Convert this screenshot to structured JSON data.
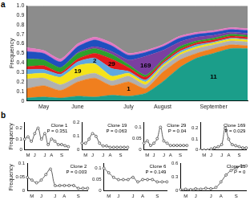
{
  "chart_data": [
    {
      "type": "area",
      "panel_label": "a",
      "stacked": true,
      "grid": false,
      "y_label": "Frequency",
      "categories": [
        null,
        "May",
        null,
        "June",
        null,
        null,
        "July",
        null,
        "August",
        null,
        null,
        "September",
        null,
        null
      ],
      "ylim": [
        0,
        1
      ],
      "yticks": [
        0,
        0.1,
        0.2,
        0.3,
        0.4,
        0.5,
        0.6,
        0.7,
        0.8,
        0.9,
        {
          "value": 1,
          "label": "1.0"
        }
      ],
      "series": [
        {
          "color": "#1b9e8a",
          "values": [
            0.03,
            0.04,
            0.03,
            0.05,
            0.04,
            0.06,
            0.05,
            0.08,
            0.2,
            0.35,
            0.45,
            0.5,
            0.55,
            0.55
          ]
        },
        {
          "color": "#f07f1e",
          "values": [
            0.1,
            0.12,
            0.08,
            0.15,
            0.2,
            0.1,
            0.15,
            0.05,
            0.1,
            0.08,
            0.05,
            0.05,
            0.04,
            0.03
          ]
        },
        {
          "color": "#b0b0b0",
          "values": [
            0.1,
            0.08,
            0.06,
            0.05,
            0.05,
            0.05,
            0.06,
            0.04,
            0.05,
            0.05,
            0.05,
            0.04,
            0.04,
            0.04
          ]
        },
        {
          "color": "#f5e31a",
          "values": [
            0.05,
            0.05,
            0.08,
            0.12,
            0.1,
            0.05,
            0.03,
            0.03,
            0.02,
            0.02,
            0.02,
            0.02,
            0.02,
            0.02
          ]
        },
        {
          "color": "#5fa8e0",
          "values": [
            0.05,
            0.04,
            0.03,
            0.04,
            0.06,
            0.08,
            0.02,
            0.02,
            0.02,
            0.02,
            0.02,
            0.01,
            0.01,
            0.01
          ]
        },
        {
          "color": "#e31a1c",
          "values": [
            0.03,
            0.04,
            0.02,
            0.03,
            0.05,
            0.1,
            0.04,
            0.03,
            0.02,
            0.02,
            0.02,
            0.02,
            0.02,
            0.02
          ]
        },
        {
          "color": "#2ca02c",
          "values": [
            0.08,
            0.06,
            0.05,
            0.06,
            0.05,
            0.05,
            0.03,
            0.02,
            0.02,
            0.03,
            0.02,
            0.02,
            0.02,
            0.02
          ]
        },
        {
          "color": "#7b3fa0",
          "values": [
            0,
            0,
            0,
            0.01,
            0.02,
            0.03,
            0.05,
            0.2,
            0.1,
            0.05,
            0.04,
            0.03,
            0.02,
            0.02
          ]
        },
        {
          "color": "#1f4fbf",
          "values": [
            0.08,
            0.07,
            0.06,
            0.06,
            0.07,
            0.06,
            0.05,
            0.04,
            0.04,
            0.04,
            0.03,
            0.03,
            0.03,
            0.03
          ]
        },
        {
          "color": "#e377c2",
          "values": [
            0.04,
            0.03,
            0.03,
            0.03,
            0.03,
            0.03,
            0.02,
            0.02,
            0.02,
            0.02,
            0.02,
            0.02,
            0.02,
            0.02
          ]
        },
        {
          "color": "#8c8c8c",
          "values": [
            0.44,
            0.47,
            0.56,
            0.4,
            0.33,
            0.39,
            0.5,
            0.47,
            0.41,
            0.32,
            0.28,
            0.26,
            0.23,
            0.24
          ]
        }
      ],
      "annotations": [
        {
          "text": "29",
          "x": 5,
          "y": 0.39
        },
        {
          "text": "169",
          "x": 7,
          "y": 0.37
        },
        {
          "text": "19",
          "x": 3,
          "y": 0.31
        },
        {
          "text": "2",
          "x": 4,
          "y": 0.42
        },
        {
          "text": "1",
          "x": 6,
          "y": 0.125
        },
        {
          "text": "11",
          "x": 11,
          "y": 0.25
        }
      ]
    },
    {
      "type": "line",
      "panel_label": "b",
      "title": "Clone 1",
      "subtitle": "P = 0.351",
      "y_label": "Frequency",
      "grid": false,
      "marker": "circle",
      "line_style": "solid",
      "color": "#333333",
      "categories": [
        null,
        "M",
        null,
        "J",
        null,
        null,
        "J",
        null,
        "A",
        null,
        null,
        "S",
        null,
        null
      ],
      "ylim": [
        0,
        0.25
      ],
      "yticks": [
        0,
        0.1,
        0.2
      ],
      "values": [
        0.1,
        0.12,
        0.08,
        0.15,
        0.2,
        0.1,
        0.15,
        0.05,
        0.1,
        0.08,
        0.05,
        0.05,
        0.04,
        0.03
      ]
    },
    {
      "type": "line",
      "title": "Clone 19",
      "subtitle": "P = 0.063",
      "grid": false,
      "marker": "circle",
      "line_style": "solid",
      "color": "#333333",
      "categories": [
        null,
        "M",
        null,
        "J",
        null,
        null,
        "J",
        null,
        "A",
        null,
        null,
        "S",
        null,
        null
      ],
      "ylim": [
        0,
        0.2
      ],
      "yticks": [
        0,
        0.1,
        0.2
      ],
      "values": [
        0.05,
        0.05,
        0.08,
        0.12,
        0.1,
        0.05,
        0.03,
        0.03,
        0.02,
        0.02,
        0.02,
        0.02,
        0.02,
        0.02
      ]
    },
    {
      "type": "line",
      "title": "Clone 29",
      "subtitle": "P = 0.04",
      "grid": false,
      "marker": "circle",
      "line_style": "solid",
      "color": "#333333",
      "categories": [
        null,
        "M",
        null,
        "J",
        null,
        null,
        "J",
        null,
        "A",
        null,
        null,
        "S",
        null,
        null
      ],
      "ylim": [
        0,
        0.12
      ],
      "yticks": [
        0,
        0.05,
        0.1
      ],
      "values": [
        0.03,
        0.04,
        0.02,
        0.03,
        0.05,
        0.1,
        0.04,
        0.03,
        0.02,
        0.02,
        0.02,
        0.02,
        0.02,
        0.02
      ]
    },
    {
      "type": "line",
      "title": "Clone 169",
      "subtitle": "P = 0.029",
      "grid": false,
      "marker": "circle",
      "line_style": "solid",
      "color": "#333333",
      "categories": [
        null,
        "M",
        null,
        "J",
        null,
        null,
        "J",
        null,
        "A",
        null,
        null,
        "S",
        null,
        null
      ],
      "ylim": [
        0,
        0.25
      ],
      "yticks": [
        0,
        0.1,
        0.2
      ],
      "values": [
        0,
        0,
        0,
        0.01,
        0.02,
        0.03,
        0.05,
        0.2,
        0.1,
        0.05,
        0.04,
        0.03,
        0.02,
        0.02
      ]
    },
    {
      "type": "line",
      "title": "Clone 2",
      "subtitle": "P = 0.003",
      "y_label": "Frequency",
      "grid": false,
      "marker": "circle",
      "line_style": "solid",
      "color": "#333333",
      "categories": [
        null,
        "M",
        null,
        "J",
        null,
        null,
        "J",
        null,
        "A",
        null,
        null,
        "S",
        null,
        null
      ],
      "ylim": [
        0,
        0.1
      ],
      "yticks": [
        0,
        0.05,
        0.1
      ],
      "values": [
        0.05,
        0.04,
        0.03,
        0.04,
        0.06,
        0.08,
        0.02,
        0.02,
        0.02,
        0.02,
        0.02,
        0.01,
        0.01,
        0.01
      ]
    },
    {
      "type": "line",
      "title": "Clone 6",
      "subtitle": "P = 0.149",
      "grid": false,
      "marker": "circle",
      "line_style": "solid",
      "color": "#333333",
      "categories": [
        null,
        "M",
        null,
        "J",
        null,
        null,
        "J",
        null,
        "A",
        null,
        null,
        "S",
        null,
        null
      ],
      "ylim": [
        0,
        0.12
      ],
      "yticks": [
        0,
        0.05,
        0.1
      ],
      "values": [
        0.1,
        0.08,
        0.06,
        0.05,
        0.05,
        0.05,
        0.06,
        0.04,
        0.05,
        0.05,
        0.05,
        0.04,
        0.04,
        0.04
      ]
    },
    {
      "type": "line",
      "title": "Clone 11",
      "subtitle": "P = 0",
      "grid": false,
      "marker": "circle",
      "line_style": "solid",
      "color": "#333333",
      "categories": [
        null,
        "M",
        null,
        "J",
        null,
        null,
        "J",
        null,
        "A",
        null,
        null,
        "S",
        null,
        null
      ],
      "ylim": [
        0,
        0.6
      ],
      "yticks": [
        0,
        0.3,
        0.6
      ],
      "values": [
        0.03,
        0.04,
        0.03,
        0.05,
        0.04,
        0.06,
        0.05,
        0.08,
        0.2,
        0.35,
        0.45,
        0.5,
        0.55,
        0.55
      ]
    }
  ]
}
